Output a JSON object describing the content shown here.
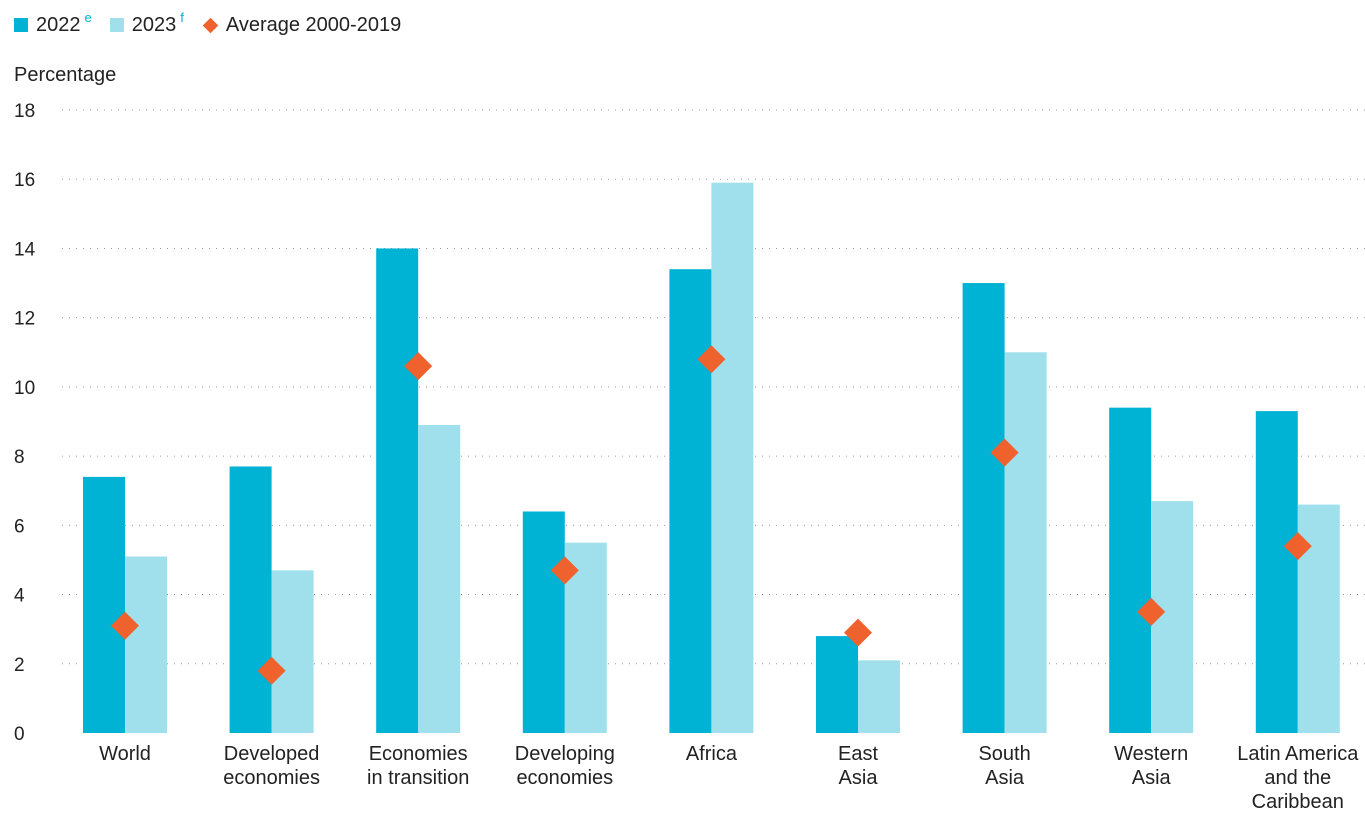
{
  "legend": {
    "items": [
      {
        "label": "2022",
        "sup": "e",
        "color": "#00b2d4",
        "shape": "square"
      },
      {
        "label": "2023",
        "sup": "f",
        "color": "#9fe0ec",
        "shape": "square"
      },
      {
        "label": "Average 2000-2019",
        "sup": "",
        "color": "#f0622d",
        "shape": "diamond"
      }
    ]
  },
  "chart_data": {
    "type": "bar",
    "ylabel": "Percentage",
    "ylim": [
      0,
      18
    ],
    "yticks": [
      0,
      2,
      4,
      6,
      8,
      10,
      12,
      14,
      16,
      18
    ],
    "grid": true,
    "legend_position": "top-left",
    "categories": [
      "World",
      "Developed economies",
      "Economies in transition",
      "Developing economies",
      "Africa",
      "East Asia",
      "South Asia",
      "Western Asia",
      "Latin America and the Caribbean"
    ],
    "category_lines": [
      [
        "World"
      ],
      [
        "Developed",
        "economies"
      ],
      [
        "Economies",
        "in transition"
      ],
      [
        "Developing",
        "economies"
      ],
      [
        "Africa"
      ],
      [
        "East",
        "Asia"
      ],
      [
        "South",
        "Asia"
      ],
      [
        "Western",
        "Asia"
      ],
      [
        "Latin America",
        "and the",
        "Caribbean"
      ]
    ],
    "series": [
      {
        "name": "2022",
        "type": "bar",
        "color": "#00b2d4",
        "values": [
          7.4,
          7.7,
          14.0,
          6.4,
          13.4,
          2.8,
          13.0,
          9.4,
          9.3
        ]
      },
      {
        "name": "2023",
        "type": "bar",
        "color": "#9fe0ec",
        "values": [
          5.1,
          4.7,
          8.9,
          5.5,
          15.9,
          2.1,
          11.0,
          6.7,
          6.6
        ]
      },
      {
        "name": "Average 2000-2019",
        "type": "marker",
        "color": "#f0622d",
        "values": [
          3.1,
          1.8,
          10.6,
          4.7,
          10.8,
          2.9,
          8.1,
          3.5,
          5.4
        ]
      }
    ]
  }
}
